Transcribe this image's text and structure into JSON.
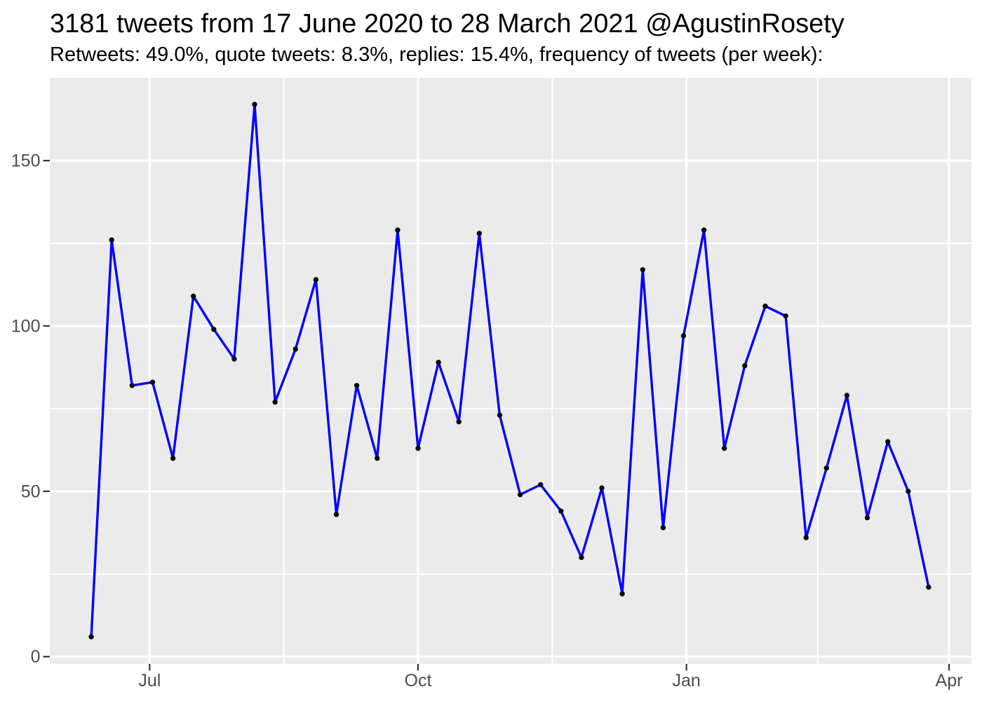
{
  "header": {
    "title": "3181 tweets from 17 June 2020 to 28 March 2021 @AgustinRosety",
    "subtitle": "Retweets: 49.0%, quote tweets: 8.3%, replies: 15.4%, frequency of tweets (per week):"
  },
  "chart_data": {
    "type": "line",
    "title": "3181 tweets from 17 June 2020 to 28 March 2021 @AgustinRosety",
    "subtitle": "Retweets: 49.0%, quote tweets: 8.3%, replies: 15.4%, frequency of tweets (per week):",
    "xlabel": "",
    "ylabel": "",
    "legend": "none",
    "grid": true,
    "total_tweets": 3181,
    "x": [
      "2020-06-11",
      "2020-06-18",
      "2020-06-25",
      "2020-07-02",
      "2020-07-09",
      "2020-07-16",
      "2020-07-23",
      "2020-07-30",
      "2020-08-06",
      "2020-08-13",
      "2020-08-20",
      "2020-08-27",
      "2020-09-03",
      "2020-09-10",
      "2020-09-17",
      "2020-09-24",
      "2020-10-01",
      "2020-10-08",
      "2020-10-15",
      "2020-10-22",
      "2020-10-29",
      "2020-11-05",
      "2020-11-12",
      "2020-11-19",
      "2020-11-26",
      "2020-12-03",
      "2020-12-10",
      "2020-12-17",
      "2020-12-24",
      "2020-12-31",
      "2021-01-07",
      "2021-01-14",
      "2021-01-21",
      "2021-01-28",
      "2021-02-04",
      "2021-02-11",
      "2021-02-18",
      "2021-02-25",
      "2021-03-04",
      "2021-03-11",
      "2021-03-18",
      "2021-03-25"
    ],
    "values": [
      6,
      126,
      82,
      83,
      60,
      109,
      99,
      90,
      167,
      77,
      93,
      114,
      43,
      82,
      60,
      129,
      63,
      89,
      71,
      128,
      73,
      49,
      52,
      44,
      30,
      51,
      19,
      117,
      39,
      97,
      129,
      63,
      88,
      106,
      103,
      36,
      57,
      79,
      42,
      65,
      50,
      21
    ],
    "x_ticks": [
      {
        "label": "Jul",
        "date": "2020-07-01"
      },
      {
        "label": "Oct",
        "date": "2020-10-01"
      },
      {
        "label": "Jan",
        "date": "2021-01-01"
      },
      {
        "label": "Apr",
        "date": "2021-04-01"
      }
    ],
    "x_minor_dates": [
      "2020-08-16",
      "2020-11-16",
      "2021-02-15"
    ],
    "y_ticks": [
      0,
      50,
      100,
      150
    ],
    "y_minor_ticks": [
      25,
      75,
      125
    ],
    "ylim": [
      -2,
      175
    ],
    "colors": {
      "line": "#0000FF",
      "point": "#0A0A0A",
      "panel_bg": "#EBEBEB",
      "grid_major": "#FFFFFF",
      "grid_minor": "#FFFFFF",
      "axis_text": "#4D4D4D",
      "tick_mark": "#333333",
      "title_text": "#000000",
      "background": "#FFFFFF"
    }
  }
}
